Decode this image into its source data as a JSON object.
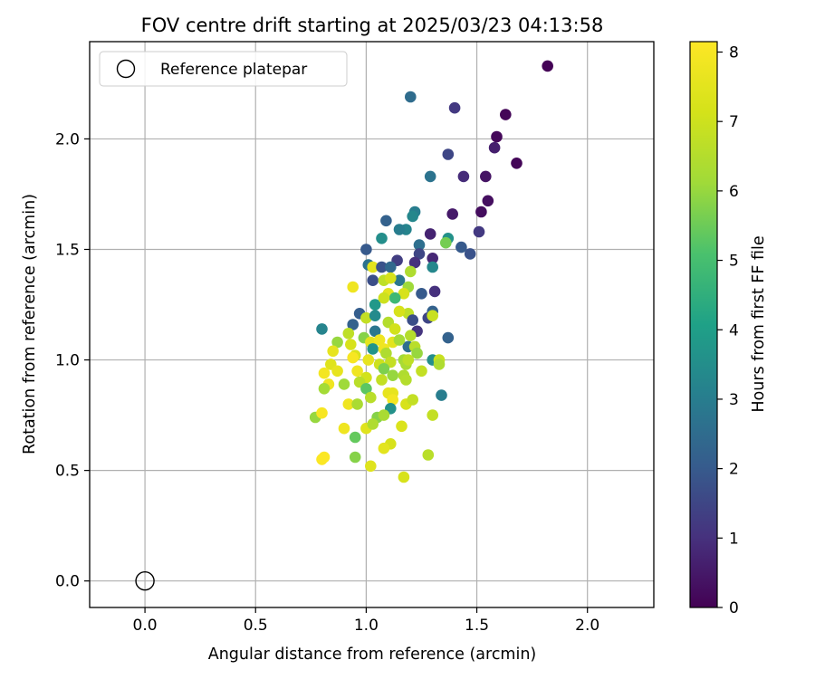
{
  "chart_data": {
    "type": "scatter",
    "title": "FOV centre drift starting at 2025/03/23 04:13:58",
    "xlabel": "Angular distance from reference (arcmin)",
    "ylabel": "Rotation from reference (arcmin)",
    "xlim": [
      -0.25,
      2.3
    ],
    "ylim": [
      -0.12,
      2.44
    ],
    "x_ticks": [
      "0.0",
      "0.5",
      "1.0",
      "1.5",
      "2.0"
    ],
    "x_tick_values": [
      0,
      0.5,
      1.0,
      1.5,
      2.0
    ],
    "y_ticks": [
      "0.0",
      "0.5",
      "1.0",
      "1.5",
      "2.0"
    ],
    "y_tick_values": [
      0,
      0.5,
      1.0,
      1.5,
      2.0
    ],
    "grid": true,
    "legend": {
      "position": "top-left",
      "entries": [
        "Reference platepar"
      ]
    },
    "reference_point": {
      "x": 0.0,
      "y": 0.0
    },
    "colorbar": {
      "label": "Hours from first FF file",
      "range": [
        0,
        8.15
      ],
      "ticks": [
        "0",
        "1",
        "2",
        "3",
        "4",
        "5",
        "6",
        "7",
        "8"
      ],
      "tick_values": [
        0,
        1,
        2,
        3,
        4,
        5,
        6,
        7,
        8
      ],
      "colormap": "viridis"
    },
    "points": [
      [
        1.82,
        2.33,
        0.05
      ],
      [
        1.63,
        2.11,
        0.1
      ],
      [
        1.59,
        2.01,
        0.15
      ],
      [
        1.68,
        1.89,
        0.1
      ],
      [
        1.58,
        1.96,
        0.6
      ],
      [
        1.4,
        2.14,
        1.2
      ],
      [
        1.2,
        2.19,
        2.5
      ],
      [
        1.37,
        1.93,
        1.5
      ],
      [
        1.54,
        1.83,
        0.4
      ],
      [
        1.44,
        1.83,
        0.9
      ],
      [
        1.29,
        1.83,
        2.7
      ],
      [
        1.55,
        1.72,
        0.3
      ],
      [
        1.52,
        1.67,
        0.25
      ],
      [
        1.39,
        1.66,
        0.5
      ],
      [
        1.22,
        1.67,
        3.0
      ],
      [
        1.21,
        1.65,
        3.3
      ],
      [
        1.09,
        1.63,
        2.2
      ],
      [
        1.29,
        1.57,
        0.7
      ],
      [
        1.51,
        1.58,
        1.2
      ],
      [
        1.47,
        1.48,
        1.8
      ],
      [
        1.43,
        1.51,
        2.0
      ],
      [
        1.37,
        1.55,
        3.6
      ],
      [
        1.36,
        1.53,
        5.6
      ],
      [
        1.18,
        1.59,
        3.2
      ],
      [
        1.15,
        1.59,
        3.0
      ],
      [
        1.07,
        1.55,
        3.5
      ],
      [
        1.24,
        1.52,
        2.6
      ],
      [
        1.24,
        1.48,
        1.5
      ],
      [
        1.0,
        1.5,
        2.0
      ],
      [
        1.14,
        1.45,
        1.3
      ],
      [
        1.22,
        1.44,
        1.0
      ],
      [
        1.3,
        1.46,
        0.8
      ],
      [
        1.3,
        1.42,
        3.3
      ],
      [
        1.01,
        1.43,
        2.7
      ],
      [
        1.03,
        1.42,
        7.5
      ],
      [
        1.07,
        1.42,
        1.8
      ],
      [
        1.11,
        1.42,
        2.4
      ],
      [
        1.03,
        1.36,
        1.7
      ],
      [
        1.15,
        1.36,
        2.8
      ],
      [
        1.2,
        1.4,
        6.4
      ],
      [
        1.19,
        1.33,
        6.1
      ],
      [
        1.08,
        1.36,
        6.7
      ],
      [
        1.25,
        1.3,
        2.0
      ],
      [
        1.31,
        1.31,
        1.0
      ],
      [
        1.11,
        1.37,
        7.2
      ],
      [
        1.17,
        1.3,
        7.2
      ],
      [
        0.94,
        1.33,
        7.8
      ],
      [
        1.04,
        1.25,
        3.8
      ],
      [
        1.1,
        1.3,
        7.5
      ],
      [
        1.13,
        1.28,
        4.8
      ],
      [
        1.19,
        1.21,
        6.7
      ],
      [
        1.08,
        1.28,
        7.0
      ],
      [
        1.15,
        1.22,
        7.2
      ],
      [
        1.3,
        1.22,
        2.2
      ],
      [
        1.21,
        1.18,
        1.7
      ],
      [
        0.97,
        1.21,
        2.1
      ],
      [
        1.0,
        1.19,
        6.8
      ],
      [
        1.04,
        1.2,
        3.4
      ],
      [
        1.1,
        1.17,
        6.5
      ],
      [
        1.13,
        1.14,
        7.1
      ],
      [
        1.04,
        1.13,
        2.8
      ],
      [
        1.28,
        1.19,
        1.5
      ],
      [
        1.3,
        1.2,
        6.9
      ],
      [
        0.94,
        1.16,
        2.2
      ],
      [
        0.92,
        1.12,
        6.7
      ],
      [
        0.99,
        1.1,
        5.8
      ],
      [
        1.12,
        1.08,
        7.5
      ],
      [
        1.23,
        1.13,
        1.1
      ],
      [
        1.19,
        1.06,
        2.6
      ],
      [
        1.37,
        1.1,
        2.2
      ],
      [
        1.2,
        1.11,
        6.5
      ],
      [
        1.15,
        1.09,
        6.2
      ],
      [
        1.22,
        1.06,
        6.6
      ],
      [
        1.23,
        1.03,
        6.0
      ],
      [
        0.87,
        1.08,
        6.0
      ],
      [
        0.93,
        1.07,
        7.2
      ],
      [
        1.02,
        1.08,
        7.5
      ],
      [
        1.06,
        1.09,
        7.8
      ],
      [
        0.8,
        1.14,
        3.2
      ],
      [
        1.03,
        1.05,
        3.7
      ],
      [
        1.08,
        1.05,
        7.8
      ],
      [
        1.09,
        1.03,
        6.4
      ],
      [
        1.17,
        1.0,
        6.2
      ],
      [
        0.85,
        1.04,
        7.6
      ],
      [
        0.95,
        1.02,
        7.3
      ],
      [
        1.01,
        1.0,
        7.6
      ],
      [
        0.94,
        1.01,
        8.0
      ],
      [
        1.11,
        0.99,
        6.8
      ],
      [
        1.06,
        0.98,
        7.0
      ],
      [
        1.18,
        0.98,
        6.3
      ],
      [
        1.19,
        1.0,
        6.7
      ],
      [
        1.3,
        1.0,
        3.5
      ],
      [
        1.33,
        1.0,
        6.9
      ],
      [
        1.33,
        0.98,
        6.4
      ],
      [
        0.84,
        0.98,
        7.4
      ],
      [
        0.87,
        0.95,
        7.6
      ],
      [
        0.81,
        0.94,
        7.9
      ],
      [
        0.96,
        0.95,
        7.8
      ],
      [
        1.08,
        0.96,
        5.7
      ],
      [
        1.12,
        0.93,
        6.0
      ],
      [
        1.25,
        0.95,
        6.8
      ],
      [
        1.17,
        0.93,
        6.4
      ],
      [
        1.18,
        0.91,
        6.5
      ],
      [
        1.0,
        0.92,
        7.1
      ],
      [
        1.07,
        0.91,
        6.8
      ],
      [
        0.97,
        0.9,
        6.6
      ],
      [
        0.9,
        0.89,
        6.1
      ],
      [
        0.83,
        0.89,
        7.8
      ],
      [
        0.81,
        0.87,
        6.2
      ],
      [
        1.0,
        0.87,
        5.3
      ],
      [
        1.02,
        0.83,
        6.6
      ],
      [
        1.1,
        0.85,
        7.6
      ],
      [
        1.12,
        0.85,
        7.6
      ],
      [
        1.12,
        0.82,
        7.9
      ],
      [
        1.18,
        0.8,
        7.2
      ],
      [
        1.21,
        0.82,
        6.8
      ],
      [
        1.34,
        0.84,
        3.0
      ],
      [
        0.92,
        0.8,
        7.8
      ],
      [
        0.96,
        0.8,
        6.3
      ],
      [
        1.11,
        0.78,
        3.6
      ],
      [
        0.77,
        0.74,
        6.0
      ],
      [
        0.8,
        0.76,
        8.0
      ],
      [
        1.05,
        0.74,
        5.8
      ],
      [
        1.08,
        0.75,
        6.3
      ],
      [
        1.3,
        0.75,
        6.8
      ],
      [
        0.9,
        0.69,
        7.8
      ],
      [
        1.0,
        0.69,
        7.4
      ],
      [
        1.03,
        0.71,
        6.4
      ],
      [
        1.16,
        0.7,
        7.3
      ],
      [
        0.95,
        0.65,
        5.4
      ],
      [
        1.11,
        0.62,
        7.2
      ],
      [
        1.08,
        0.6,
        7.5
      ],
      [
        1.28,
        0.57,
        6.6
      ],
      [
        0.95,
        0.56,
        5.8
      ],
      [
        0.8,
        0.55,
        8.1
      ],
      [
        0.81,
        0.56,
        8.1
      ],
      [
        1.02,
        0.52,
        7.4
      ],
      [
        1.17,
        0.47,
        7.2
      ]
    ]
  }
}
